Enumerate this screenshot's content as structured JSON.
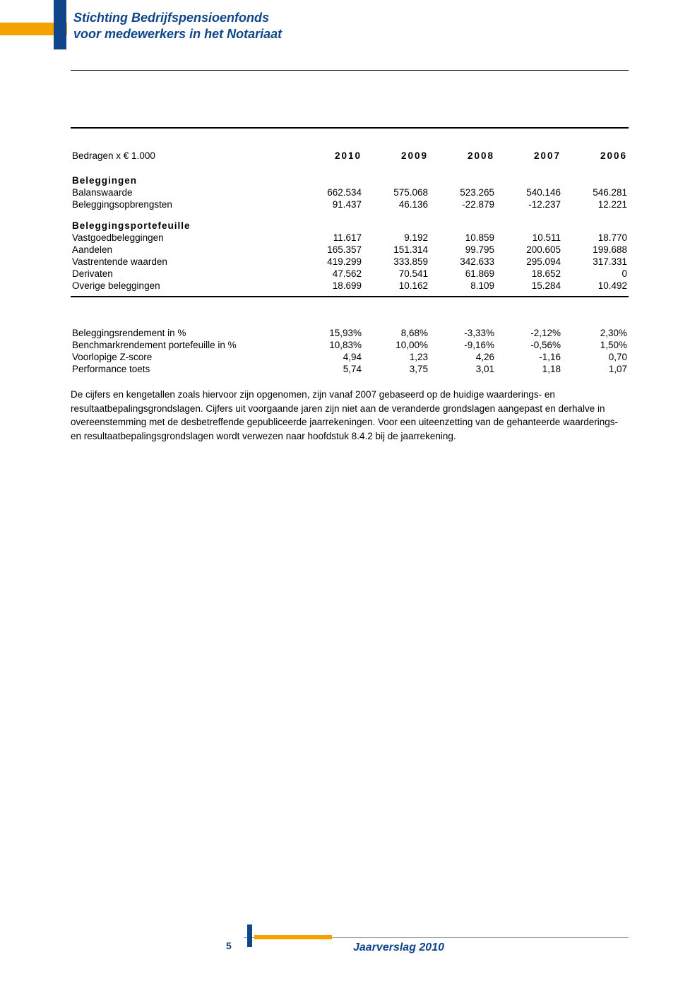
{
  "org": {
    "line1": "Stichting Bedrijfspensioenfonds",
    "line2": "voor medewerkers in het Notariaat"
  },
  "colors": {
    "brand_blue": "#0f4589",
    "brand_orange": "#f5a100",
    "text": "#000000",
    "background": "#ffffff"
  },
  "table": {
    "unit_label": "Bedragen x € 1.000",
    "years": [
      "2010",
      "2009",
      "2008",
      "2007",
      "2006"
    ],
    "sections": [
      {
        "title": "Beleggingen",
        "rows": [
          {
            "label": "Balanswaarde",
            "values": [
              "662.534",
              "575.068",
              "523.265",
              "540.146",
              "546.281"
            ]
          },
          {
            "label": "Beleggingsopbrengsten",
            "values": [
              "91.437",
              "46.136",
              "-22.879",
              "-12.237",
              "12.221"
            ]
          }
        ]
      },
      {
        "title": "Beleggingsportefeuille",
        "rows": [
          {
            "label": "Vastgoedbeleggingen",
            "values": [
              "11.617",
              "9.192",
              "10.859",
              "10.511",
              "18.770"
            ]
          },
          {
            "label": "Aandelen",
            "values": [
              "165.357",
              "151.314",
              "99.795",
              "200.605",
              "199.688"
            ]
          },
          {
            "label": "Vastrentende waarden",
            "values": [
              "419.299",
              "333.859",
              "342.633",
              "295.094",
              "317.331"
            ]
          },
          {
            "label": "Derivaten",
            "values": [
              "47.562",
              "70.541",
              "61.869",
              "18.652",
              "0"
            ]
          },
          {
            "label": "Overige beleggingen",
            "values": [
              "18.699",
              "10.162",
              "8.109",
              "15.284",
              "10.492"
            ]
          }
        ]
      }
    ],
    "performance_rows": [
      {
        "label": "Beleggingsrendement in %",
        "values": [
          "15,93%",
          "8,68%",
          "-3,33%",
          "-2,12%",
          "2,30%"
        ]
      },
      {
        "label": "Benchmarkrendement portefeuille in %",
        "values": [
          "10,83%",
          "10,00%",
          "-9,16%",
          "-0,56%",
          "1,50%"
        ]
      },
      {
        "label": "Voorlopige Z-score",
        "values": [
          "4,94",
          "1,23",
          "4,26",
          "-1,16",
          "0,70"
        ]
      },
      {
        "label": "Performance toets",
        "values": [
          "5,74",
          "3,75",
          "3,01",
          "1,18",
          "1,07"
        ]
      }
    ]
  },
  "footnote": "De cijfers en kengetallen zoals hiervoor zijn opgenomen, zijn vanaf 2007 gebaseerd op de huidige waarderings- en resultaatbepalingsgrondslagen. Cijfers uit voorgaande jaren zijn niet aan de veranderde grondslagen aangepast en derhalve in overeenstemming met de desbetreffende gepubliceerde jaarrekeningen. Voor een uiteenzetting van de gehanteerde waarderings- en resultaatbepalingsgrondslagen wordt verwezen naar hoofdstuk 8.4.2 bij de jaarrekening.",
  "footer": {
    "page": "5",
    "title": "Jaarverslag 2010"
  }
}
